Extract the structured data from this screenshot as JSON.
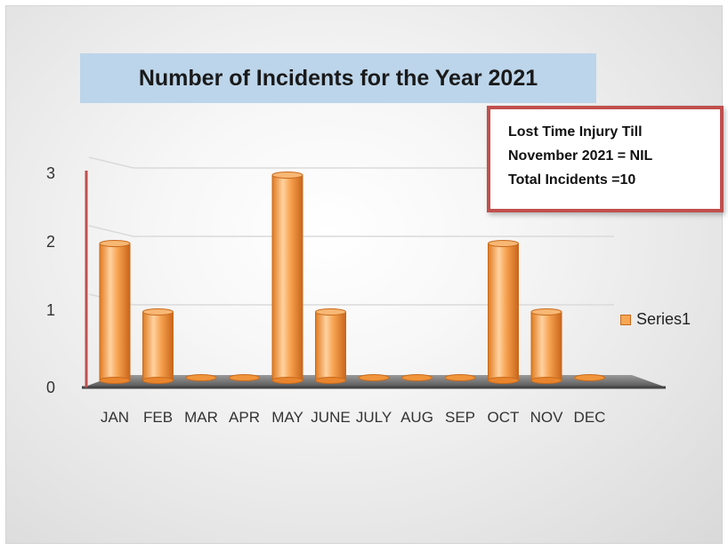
{
  "chart_data": {
    "type": "bar",
    "title": "Number of Incidents for the Year 2021",
    "categories": [
      "JAN",
      "FEB",
      "MAR",
      "APR",
      "MAY",
      "JUNE",
      "JULY",
      "AUG",
      "SEP",
      "OCT",
      "NOV",
      "DEC"
    ],
    "series": [
      {
        "name": "Series1",
        "values": [
          2,
          1,
          0,
          0,
          3,
          1,
          0,
          0,
          0,
          2,
          1,
          0
        ],
        "color": "#f39a3f"
      }
    ],
    "yticks": [
      "0",
      "1",
      "2",
      "3"
    ],
    "ylim": [
      0,
      3
    ],
    "grid": true,
    "legend_position": "right",
    "annotation": [
      "Lost Time Injury Till",
      "November 2021 = NIL",
      "Total Incidents =10"
    ]
  },
  "colors": {
    "bar_fill": "#f39a3f",
    "bar_edge": "#c86a1c",
    "title_band": "#bcd5ea",
    "annotation_border": "#c0504d",
    "y_axis_line": "#c0504d"
  }
}
